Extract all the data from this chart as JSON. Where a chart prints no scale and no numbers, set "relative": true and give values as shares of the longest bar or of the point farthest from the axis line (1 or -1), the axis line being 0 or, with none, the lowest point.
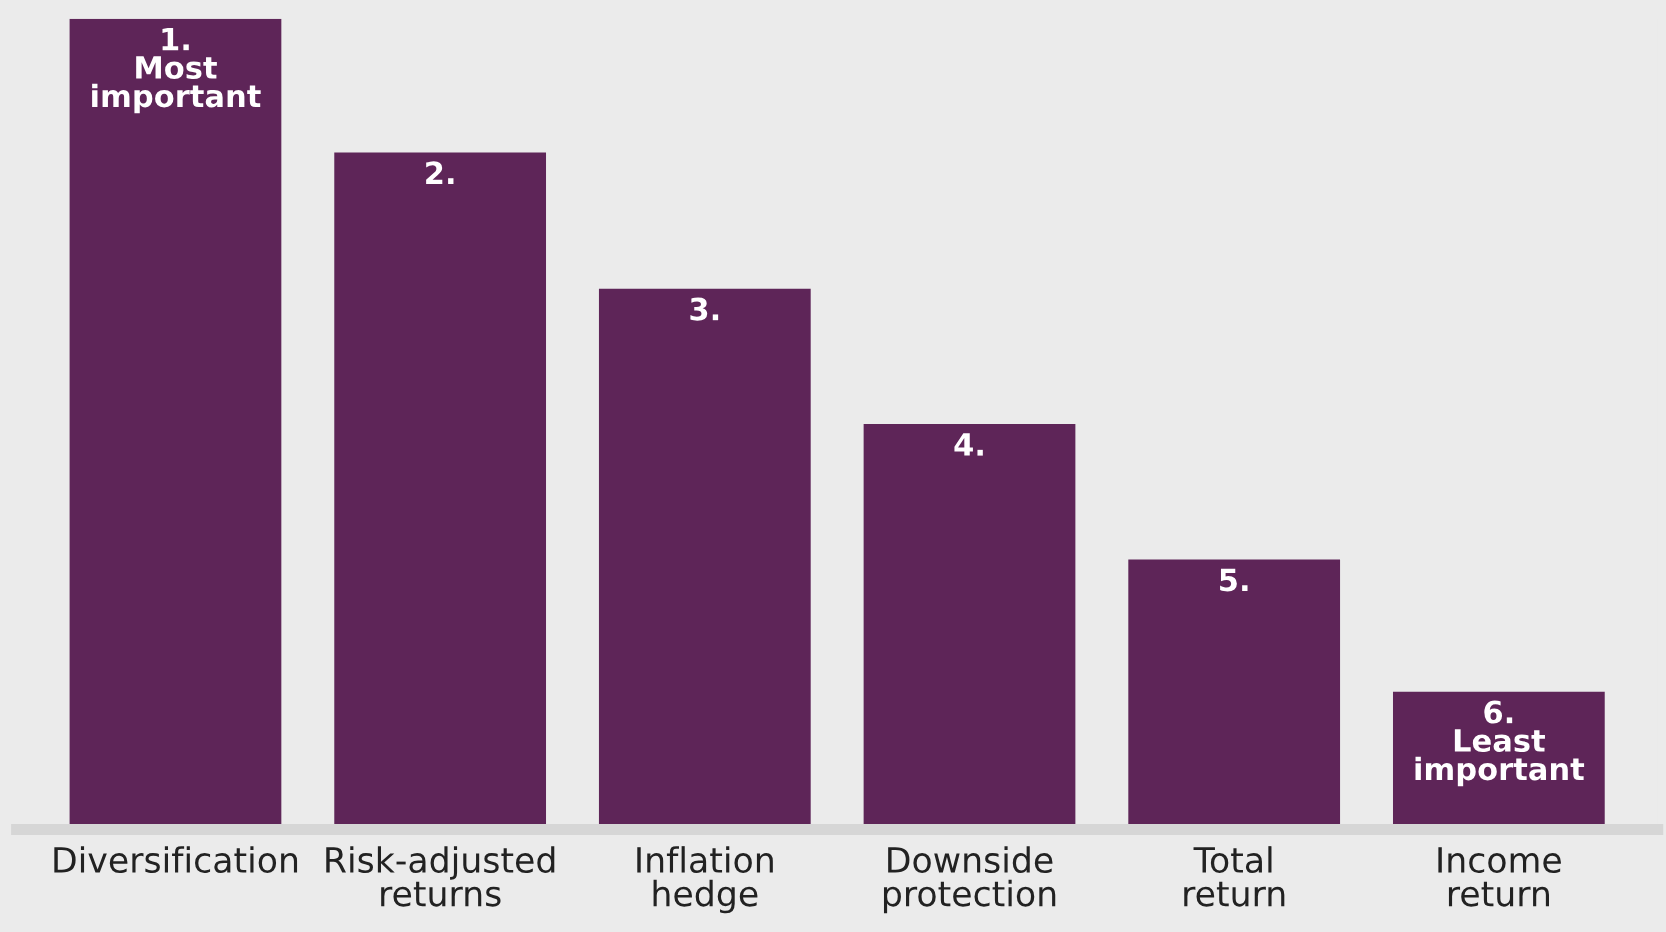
{
  "chart_data": {
    "type": "bar",
    "relative": true,
    "categories": [
      "Diversification",
      "Risk-adjusted\nreturns",
      "Inflation\nhedge",
      "Downside\nprotection",
      "Total\nreturn",
      "Income\nreturn"
    ],
    "values": [
      1,
      0.835,
      0.667,
      0.5,
      0.333,
      0.17
    ],
    "color": "#5e2558",
    "annotations": [
      {
        "text": "1.\nMost\nimportant",
        "x": "Diversification",
        "y": 1
      },
      {
        "text": "2.",
        "x": "Risk-adjusted\nreturns",
        "y": 0.835
      },
      {
        "text": "3.",
        "x": "Inflation\nhedge",
        "y": 0.667
      },
      {
        "text": "4.",
        "x": "Downside\nprotection",
        "y": 0.5
      },
      {
        "text": "5.",
        "x": "Total\nreturn",
        "y": 0.333
      },
      {
        "text": "6.\nLeast\nimportant",
        "x": "Income\nreturn",
        "y": 0.17
      }
    ],
    "grid": false,
    "legend": false
  }
}
